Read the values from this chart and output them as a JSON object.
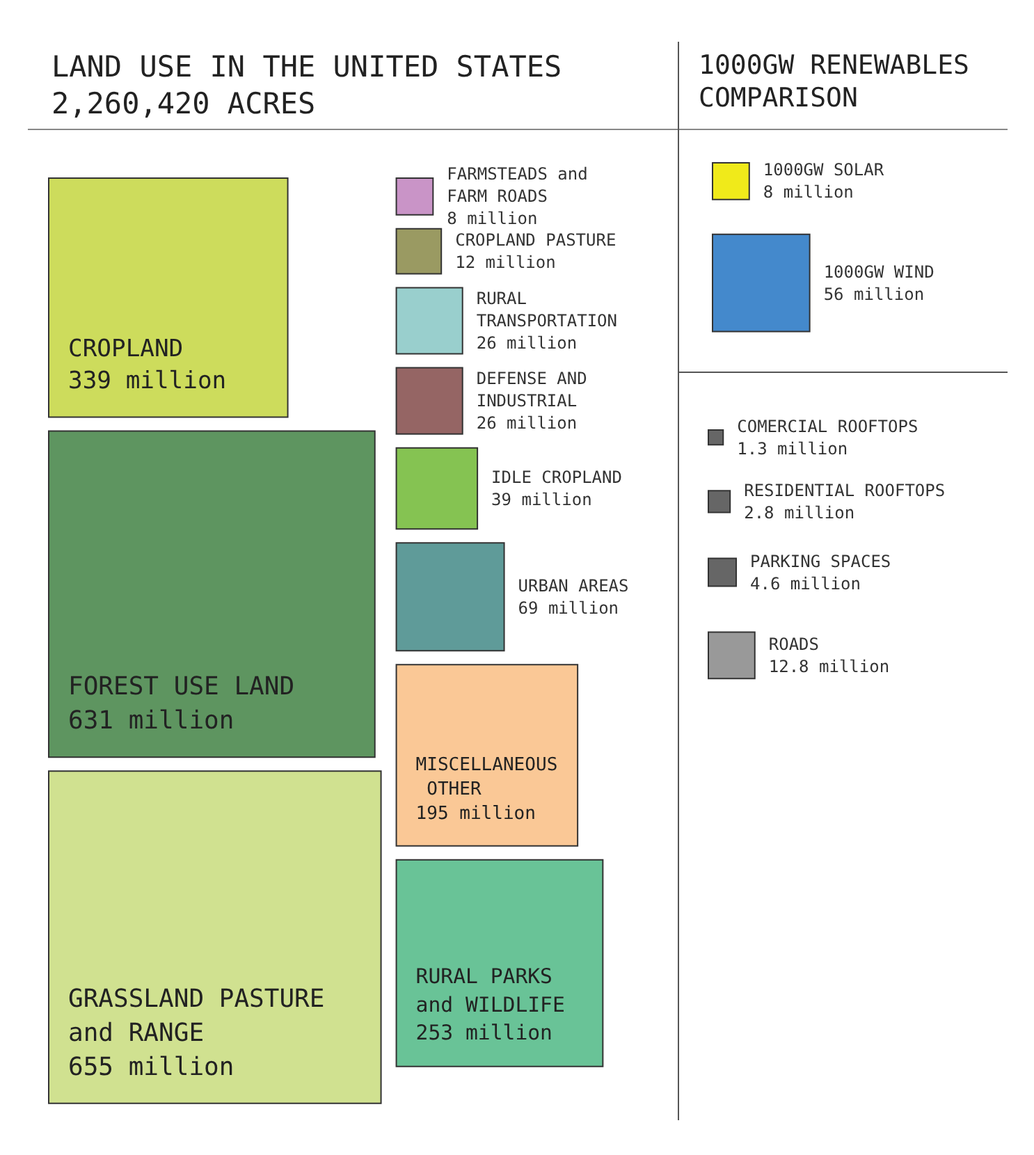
{
  "chart_data": [
    {
      "type": "other",
      "title": "LAND USE IN THE UNITED STATES",
      "subtitle": "2,260,420 ACRES",
      "categories": [
        "CROPLAND",
        "FOREST USE LAND",
        "GRASSLAND PASTURE and RANGE",
        "FARMSTEADS and FARM ROADS",
        "CROPLAND PASTURE",
        "RURAL TRANSPORTATION",
        "DEFENSE AND INDUSTRIAL",
        "IDLE CROPLAND",
        "URBAN AREAS",
        "MISCELLANEOUS OTHER",
        "RURAL PARKS and WILDLIFE"
      ],
      "values": [
        339,
        631,
        655,
        8,
        12,
        26,
        26,
        39,
        69,
        195,
        253
      ],
      "colors": [
        "#cddc5c",
        "#5e9560",
        "#d0e190",
        "#c994c7",
        "#9a9a62",
        "#99cfcd",
        "#956564",
        "#85c352",
        "#5f9b99",
        "#fac896",
        "#69c397"
      ],
      "value_labels": [
        "339 million",
        "631 million",
        "655 million",
        "8 million",
        "12 million",
        "26 million",
        "26 million",
        "39 million",
        "69 million",
        "195 million",
        "253 million"
      ]
    },
    {
      "type": "other",
      "title": "1000GW RENEWABLES COMPARISON",
      "categories": [
        "1000GW SOLAR",
        "1000GW WIND"
      ],
      "values": [
        8,
        56
      ],
      "colors": [
        "#f0ea1a",
        "#4489cc"
      ],
      "value_labels": [
        "8 million",
        "56 million"
      ]
    },
    {
      "type": "other",
      "categories": [
        "COMERCIAL ROOFTOPS",
        "RESIDENTIAL ROOFTOPS",
        "PARKING SPACES",
        "ROADS"
      ],
      "values": [
        1.3,
        2.8,
        4.6,
        12.8
      ],
      "colors": [
        "#666666",
        "#666666",
        "#666666",
        "#999999"
      ],
      "value_labels": [
        "1.3 million",
        "2.8 million",
        "4.6 million",
        "12.8 million"
      ]
    }
  ]
}
